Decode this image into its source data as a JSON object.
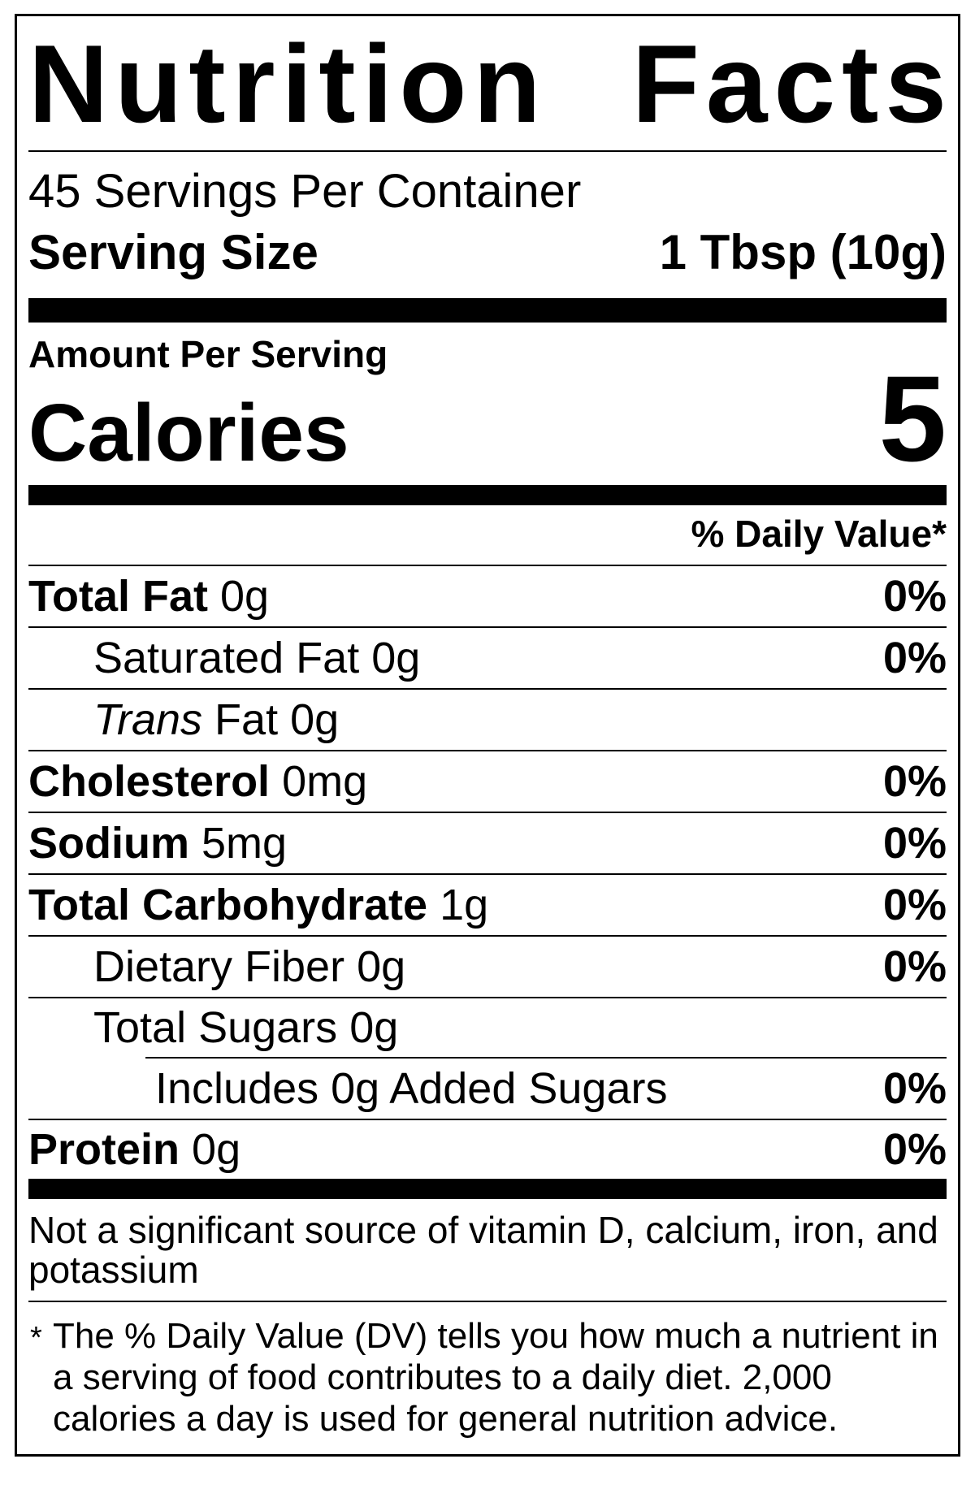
{
  "label": {
    "title": {
      "text_left": "Nutrition",
      "text_right": "Facts"
    },
    "servings_per_container": "45 Servings Per Container",
    "serving_size": {
      "label": "Serving Size",
      "value": "1 Tbsp (10g)"
    },
    "amount_per_serving": "Amount Per Serving",
    "calories": {
      "label": "Calories",
      "value": "5"
    },
    "daily_value_header": "% Daily Value*",
    "rows": [
      {
        "name": "Total Fat",
        "amount": "0g",
        "dv": "0%"
      },
      {
        "name": "Saturated Fat",
        "amount": "0g",
        "dv": "0%"
      },
      {
        "name_italic": "Trans",
        "name": "Fat",
        "amount": "0g"
      },
      {
        "name": "Cholesterol",
        "amount": "0mg",
        "dv": "0%"
      },
      {
        "name": "Sodium",
        "amount": "5mg",
        "dv": "0%"
      },
      {
        "name": "Total Carbohydrate",
        "amount": "1g",
        "dv": "0%"
      },
      {
        "name": "Dietary Fiber",
        "amount": "0g",
        "dv": "0%"
      },
      {
        "name": "Total Sugars",
        "amount": "0g"
      },
      {
        "name": "Includes 0g Added Sugars",
        "dv": "0%"
      },
      {
        "name": "Protein",
        "amount": "0g",
        "dv": "0%"
      }
    ],
    "not_significant_note": "Not a significant source of vitamin D, calcium, iron, and potassium",
    "footnote": {
      "marker": "*",
      "text": "The % Daily Value (DV) tells you how much a nutrient in a serving of food contributes to a daily diet. 2,000 calories a day is used for general nutrition advice."
    },
    "colors": {
      "ink": "#000000",
      "paper": "#ffffff"
    }
  }
}
